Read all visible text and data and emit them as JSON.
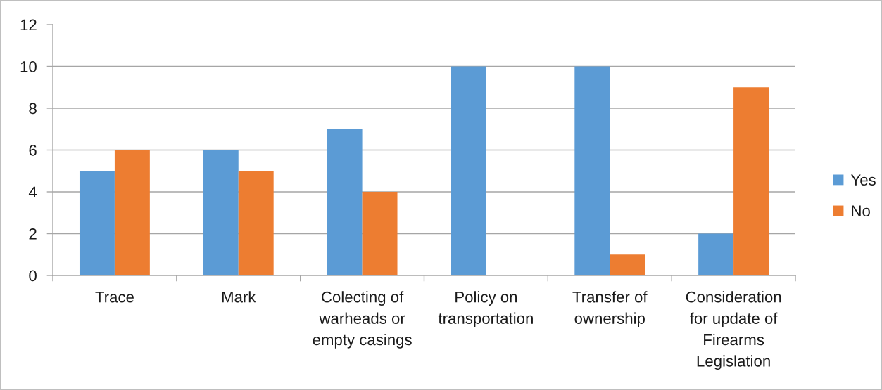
{
  "chart_data": {
    "type": "bar",
    "categories": [
      "Trace",
      "Mark",
      "Colecting of warheads or empty casings",
      "Policy on transportation",
      "Transfer of ownership",
      "Consideration for update of Firearms Legislation"
    ],
    "series": [
      {
        "name": "Yes",
        "color": "#5b9bd5",
        "values": [
          5,
          6,
          7,
          10,
          10,
          2
        ]
      },
      {
        "name": "No",
        "color": "#ed7d31",
        "values": [
          6,
          5,
          4,
          0,
          1,
          9
        ]
      }
    ],
    "ylim": [
      0,
      12
    ],
    "yticks": [
      0,
      2,
      4,
      6,
      8,
      10,
      12
    ],
    "grid": "y",
    "legend": "right"
  }
}
